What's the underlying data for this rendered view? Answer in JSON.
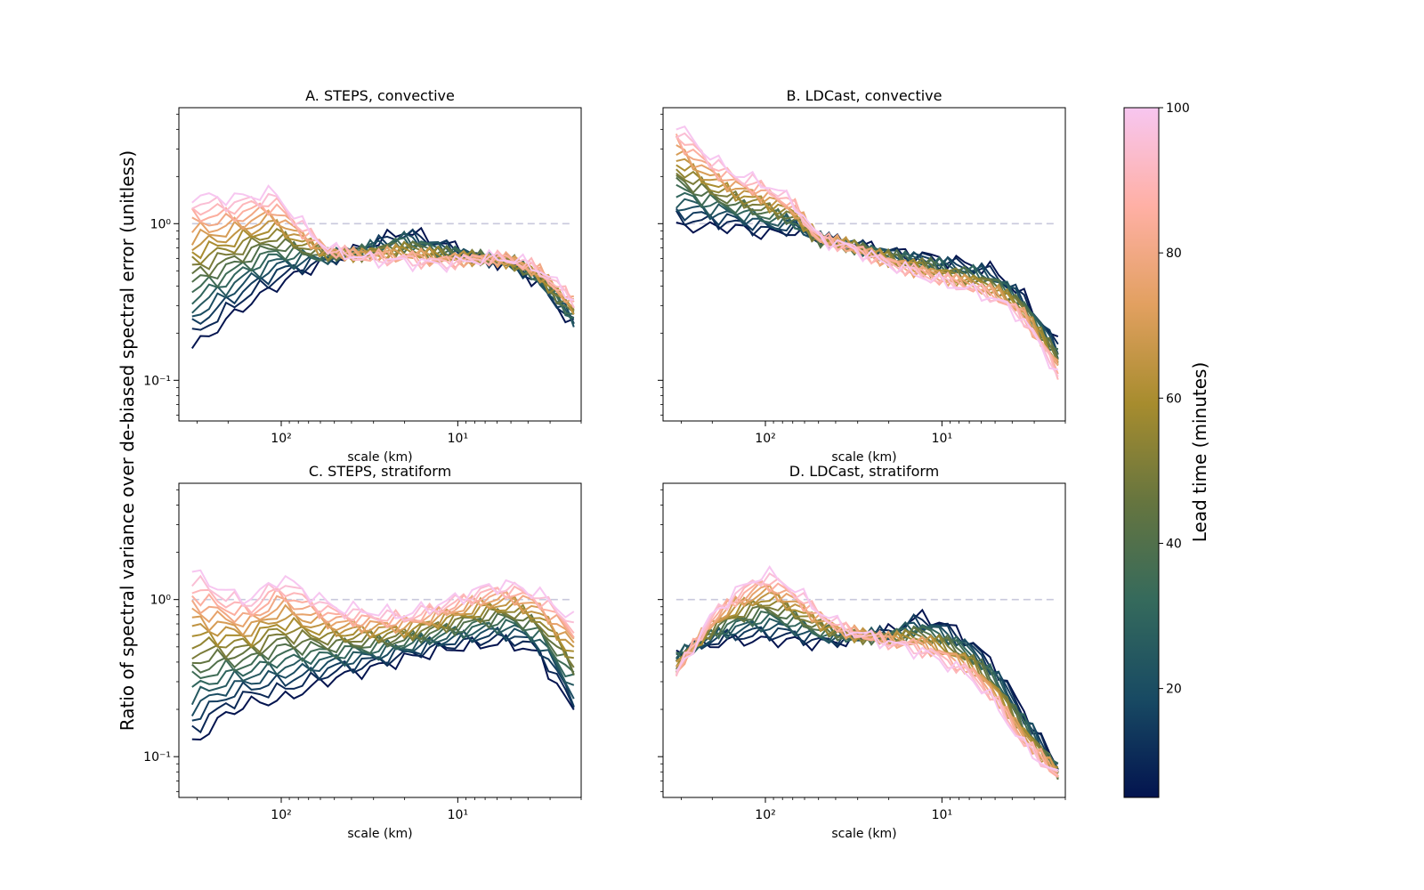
{
  "figure": {
    "ylabel": "Ratio of spectral variance over de-biased spectral error (unitless)",
    "colorbar": {
      "label": "Lead time (minutes)",
      "range": [
        5,
        100
      ],
      "ticks": [
        "20",
        "40",
        "60",
        "80",
        "100"
      ],
      "tick_values": [
        20,
        40,
        60,
        80,
        100
      ],
      "colormap": [
        "#03144f",
        "#184a63",
        "#356a5c",
        "#66753f",
        "#a78c2e",
        "#e2a060",
        "#ffb0a5",
        "#f7c6f0"
      ]
    }
  },
  "chart_data": [
    {
      "type": "line",
      "title": "A. STEPS, convective",
      "xlabel": "scale (km)",
      "ylabel": "",
      "xscale": "log-reversed",
      "yscale": "log",
      "xlim": [
        380,
        2
      ],
      "ylim": [
        0.055,
        5.5
      ],
      "x_tick_values": [
        100,
        10
      ],
      "x_ticks": [
        "10²",
        "10¹"
      ],
      "y_tick_values": [
        1,
        0.1
      ],
      "y_ticks": [
        "10⁰",
        "10⁻¹"
      ],
      "reference_line": 1,
      "lead_times": [
        5,
        10,
        15,
        20,
        25,
        30,
        35,
        40,
        45,
        50,
        55,
        60,
        65,
        70,
        75,
        80,
        85,
        90,
        95,
        100
      ],
      "series_profile": {
        "early": [
          [
            320,
            0.16
          ],
          [
            160,
            0.3
          ],
          [
            100,
            0.42
          ],
          [
            75,
            0.5
          ],
          [
            50,
            0.6
          ],
          [
            30,
            0.75
          ],
          [
            20,
            0.9
          ],
          [
            12,
            0.75
          ],
          [
            8,
            0.62
          ],
          [
            5,
            0.55
          ],
          [
            3.5,
            0.42
          ],
          [
            2.2,
            0.22
          ]
        ],
        "late": [
          [
            320,
            1.5
          ],
          [
            200,
            1.45
          ],
          [
            150,
            1.5
          ],
          [
            110,
            1.6
          ],
          [
            80,
            1.05
          ],
          [
            55,
            0.7
          ],
          [
            35,
            0.6
          ],
          [
            20,
            0.57
          ],
          [
            12,
            0.55
          ],
          [
            7,
            0.6
          ],
          [
            5,
            0.6
          ],
          [
            3.5,
            0.52
          ],
          [
            2.2,
            0.33
          ]
        ]
      }
    },
    {
      "type": "line",
      "title": "B. LDCast, convective",
      "xlabel": "scale (km)",
      "ylabel": "",
      "xscale": "log-reversed",
      "yscale": "log",
      "xlim": [
        380,
        2
      ],
      "ylim": [
        0.055,
        5.5
      ],
      "x_tick_values": [
        100,
        10
      ],
      "x_ticks": [
        "10²",
        "10¹"
      ],
      "y_tick_values": [
        1,
        0.1
      ],
      "y_ticks": [
        "10⁰",
        "10⁻¹"
      ],
      "reference_line": 1,
      "lead_times": [
        5,
        10,
        15,
        20,
        25,
        30,
        35,
        40,
        45,
        50,
        55,
        60,
        65,
        70,
        75,
        80,
        85,
        90,
        95,
        100
      ],
      "series_profile": {
        "early": [
          [
            320,
            0.95
          ],
          [
            200,
            0.95
          ],
          [
            150,
            0.95
          ],
          [
            100,
            0.85
          ],
          [
            70,
            0.9
          ],
          [
            50,
            0.8
          ],
          [
            35,
            0.75
          ],
          [
            20,
            0.67
          ],
          [
            12,
            0.62
          ],
          [
            7,
            0.55
          ],
          [
            5,
            0.5
          ],
          [
            3.5,
            0.35
          ],
          [
            2.2,
            0.17
          ]
        ],
        "late": [
          [
            320,
            4.3
          ],
          [
            200,
            2.6
          ],
          [
            150,
            2.1
          ],
          [
            100,
            1.8
          ],
          [
            70,
            1.4
          ],
          [
            50,
            0.8
          ],
          [
            35,
            0.72
          ],
          [
            20,
            0.55
          ],
          [
            12,
            0.45
          ],
          [
            7,
            0.38
          ],
          [
            5,
            0.33
          ],
          [
            3.5,
            0.25
          ],
          [
            2.2,
            0.11
          ]
        ]
      }
    },
    {
      "type": "line",
      "title": "C. STEPS, stratiform",
      "xlabel": "scale (km)",
      "ylabel": "",
      "xscale": "log-reversed",
      "yscale": "log",
      "xlim": [
        380,
        2
      ],
      "ylim": [
        0.055,
        5.5
      ],
      "x_tick_values": [
        100,
        10
      ],
      "x_ticks": [
        "10²",
        "10¹"
      ],
      "y_tick_values": [
        1,
        0.1
      ],
      "y_ticks": [
        "10⁰",
        "10⁻¹"
      ],
      "reference_line": 1,
      "lead_times": [
        5,
        10,
        15,
        20,
        25,
        30,
        35,
        40,
        45,
        50,
        55,
        60,
        65,
        70,
        75,
        80,
        85,
        90,
        95,
        100
      ],
      "series_profile": {
        "early": [
          [
            320,
            0.12
          ],
          [
            200,
            0.19
          ],
          [
            150,
            0.22
          ],
          [
            100,
            0.23
          ],
          [
            70,
            0.27
          ],
          [
            50,
            0.32
          ],
          [
            35,
            0.35
          ],
          [
            20,
            0.42
          ],
          [
            12,
            0.48
          ],
          [
            7,
            0.52
          ],
          [
            5,
            0.53
          ],
          [
            3.5,
            0.45
          ],
          [
            2.2,
            0.19
          ]
        ],
        "late": [
          [
            320,
            1.5
          ],
          [
            200,
            1.1
          ],
          [
            150,
            1.0
          ],
          [
            100,
            1.4
          ],
          [
            70,
            1.1
          ],
          [
            50,
            0.9
          ],
          [
            35,
            0.85
          ],
          [
            20,
            0.8
          ],
          [
            12,
            0.95
          ],
          [
            7,
            1.2
          ],
          [
            5,
            1.25
          ],
          [
            3.5,
            1.1
          ],
          [
            2.2,
            0.75
          ]
        ]
      }
    },
    {
      "type": "line",
      "title": "D. LDCast, stratiform",
      "xlabel": "scale (km)",
      "ylabel": "",
      "xscale": "log-reversed",
      "yscale": "log",
      "xlim": [
        380,
        2
      ],
      "ylim": [
        0.055,
        5.5
      ],
      "x_tick_values": [
        100,
        10
      ],
      "x_ticks": [
        "10²",
        "10¹"
      ],
      "y_tick_values": [
        1,
        0.1
      ],
      "y_ticks": [
        "10⁰",
        "10⁻¹"
      ],
      "reference_line": 1,
      "lead_times": [
        5,
        10,
        15,
        20,
        25,
        30,
        35,
        40,
        45,
        50,
        55,
        60,
        65,
        70,
        75,
        80,
        85,
        90,
        95,
        100
      ],
      "series_profile": {
        "early": [
          [
            320,
            0.47
          ],
          [
            200,
            0.52
          ],
          [
            150,
            0.55
          ],
          [
            100,
            0.55
          ],
          [
            70,
            0.55
          ],
          [
            50,
            0.52
          ],
          [
            35,
            0.55
          ],
          [
            20,
            0.62
          ],
          [
            14,
            0.78
          ],
          [
            10,
            0.72
          ],
          [
            7,
            0.55
          ],
          [
            5,
            0.38
          ],
          [
            3.5,
            0.2
          ],
          [
            2.2,
            0.085
          ]
        ],
        "late": [
          [
            320,
            0.33
          ],
          [
            200,
            0.8
          ],
          [
            150,
            1.1
          ],
          [
            100,
            1.5
          ],
          [
            70,
            1.2
          ],
          [
            50,
            0.85
          ],
          [
            35,
            0.65
          ],
          [
            20,
            0.53
          ],
          [
            12,
            0.45
          ],
          [
            7,
            0.33
          ],
          [
            5,
            0.22
          ],
          [
            3.5,
            0.12
          ],
          [
            2.2,
            0.075
          ]
        ]
      }
    }
  ]
}
